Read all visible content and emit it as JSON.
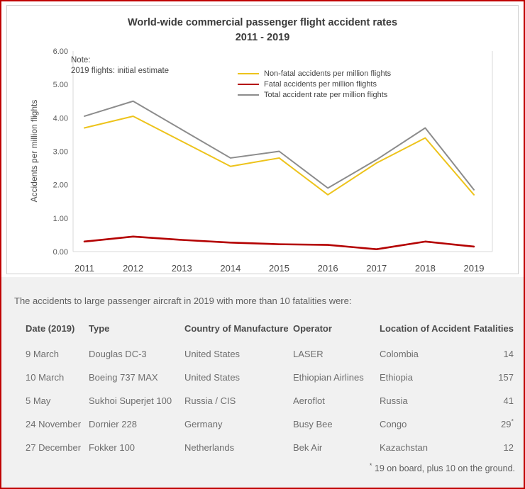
{
  "chart": {
    "title_line1": "World-wide commercial passenger flight accident rates",
    "title_line2": "2011 - 2019",
    "note_line1": "Note:",
    "note_line2": "2019 flights: initial estimate",
    "y_axis_label": "Accidents per million flights"
  },
  "chart_data": {
    "type": "line",
    "title": "World-wide commercial passenger flight accident rates 2011 - 2019",
    "x": [
      "2011",
      "2012",
      "2013",
      "2014",
      "2015",
      "2016",
      "2017",
      "2018",
      "2019"
    ],
    "xlabel": "",
    "ylabel": "Accidents per million flights",
    "ylim": [
      0,
      6
    ],
    "y_ticks": [
      "0.00",
      "1.00",
      "2.00",
      "3.00",
      "4.00",
      "5.00",
      "6.00"
    ],
    "grid": false,
    "legend_position": "top-center",
    "annotation": "Note: 2019 flights: initial estimate",
    "series": [
      {
        "name": "Non-fatal accidents per million flights",
        "color": "#EDC31B",
        "values": [
          3.7,
          4.05,
          3.3,
          2.55,
          2.8,
          1.7,
          2.65,
          3.4,
          1.7
        ]
      },
      {
        "name": "Fatal accidents per million flights",
        "color": "#B40000",
        "values": [
          0.3,
          0.45,
          0.35,
          0.27,
          0.22,
          0.2,
          0.07,
          0.3,
          0.15
        ]
      },
      {
        "name": "Total accident rate per million flights",
        "color": "#8C8C8C",
        "values": [
          4.05,
          4.5,
          3.65,
          2.8,
          3.0,
          1.9,
          2.75,
          3.7,
          1.85
        ]
      }
    ]
  },
  "table": {
    "intro": "The accidents to large passenger aircraft in 2019 with more than 10 fatalities were:",
    "headers": [
      "Date (2019)",
      "Type",
      "Country of Manufacture",
      "Operator",
      "Location of Accident",
      "Fatalities"
    ],
    "rows": [
      {
        "date": "9 March",
        "type": "Douglas DC-3",
        "country": "United States",
        "operator": "LASER",
        "location": "Colombia",
        "fatalities": "14",
        "marker": ""
      },
      {
        "date": "10 March",
        "type": "Boeing 737 MAX",
        "country": "United States",
        "operator": "Ethiopian Airlines",
        "location": "Ethiopia",
        "fatalities": "157",
        "marker": ""
      },
      {
        "date": "5 May",
        "type": "Sukhoi Superjet 100",
        "country": "Russia / CIS",
        "operator": "Aeroflot",
        "location": "Russia",
        "fatalities": "41",
        "marker": ""
      },
      {
        "date": "24 November",
        "type": "Dornier 228",
        "country": "Germany",
        "operator": "Busy Bee",
        "location": "Congo",
        "fatalities": "29",
        "marker": "*"
      },
      {
        "date": "27 December",
        "type": "Fokker 100",
        "country": "Netherlands",
        "operator": "Bek Air",
        "location": "Kazachstan",
        "fatalities": "12",
        "marker": ""
      }
    ],
    "footnote_marker": "*",
    "footnote": "19 on board, plus 10 on the ground."
  },
  "colors": {
    "page_border": "#C00000",
    "section_background": "#F1F1F1",
    "axis_line": "#D9D9D9"
  }
}
